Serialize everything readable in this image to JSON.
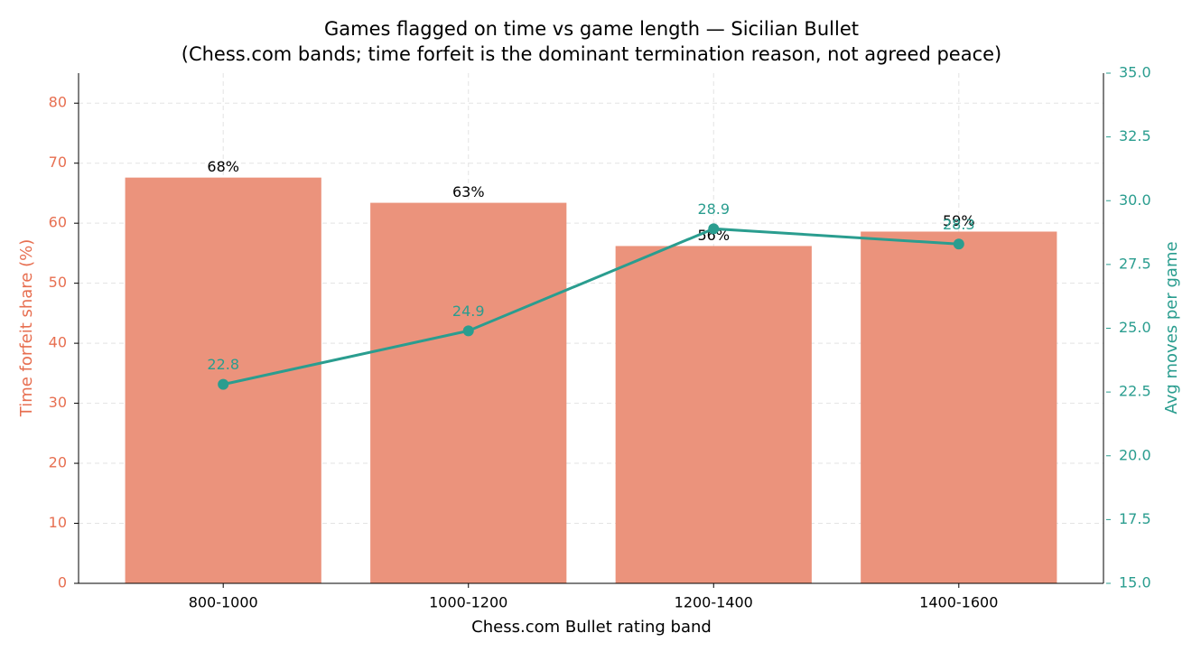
{
  "chart_data": {
    "type": "bar",
    "title": "Games flagged on time vs game length — Sicilian Bullet",
    "subtitle": "(Chess.com bands; time forfeit is the dominant termination reason, not agreed peace)",
    "x_label": "Chess.com Bullet rating band",
    "y_label": "Time forfeit share (%)",
    "y2_label": "Avg moves per game",
    "categories": [
      "800-1000",
      "1000-1200",
      "1200-1400",
      "1400-1600"
    ],
    "series": [
      {
        "type": "bar",
        "color": "#eb937c",
        "values": [
          67.6,
          63.4,
          56.2,
          58.6
        ],
        "value_labels": [
          "68%",
          "63%",
          "56%",
          "59%"
        ]
      },
      {
        "type": "line",
        "axis": "y2",
        "color": "#2a9d8f",
        "values": [
          22.8,
          24.9,
          28.9,
          28.3
        ]
      }
    ],
    "ylim": [
      0,
      85
    ],
    "yticks": [
      0,
      10,
      20,
      30,
      40,
      50,
      60,
      70,
      80
    ],
    "y2lim": [
      15,
      35
    ],
    "y2ticks": [
      {
        "value": 15,
        "label": "15.0"
      },
      {
        "value": 17.5,
        "label": "17.5"
      },
      {
        "value": 20,
        "label": "20.0"
      },
      {
        "value": 22.5,
        "label": "22.5"
      },
      {
        "value": 25,
        "label": "25.0"
      },
      {
        "value": 27.5,
        "label": "27.5"
      },
      {
        "value": 30,
        "label": "30.0"
      },
      {
        "value": 32.5,
        "label": "32.5"
      },
      {
        "value": 35,
        "label": "35.0"
      }
    ],
    "grid": true,
    "y_color": "#e76f51"
  }
}
